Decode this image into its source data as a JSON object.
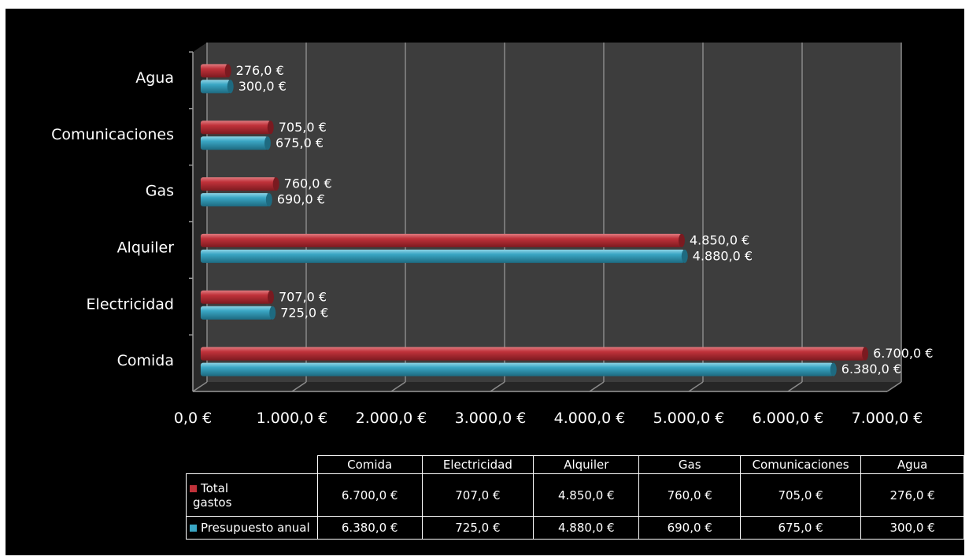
{
  "chart_data": {
    "type": "bar",
    "orientation": "horizontal",
    "categories": [
      "Comida",
      "Electricidad",
      "Alquiler",
      "Gas",
      "Comunicaciones",
      "Agua"
    ],
    "series": [
      {
        "name": "Total gastos",
        "name_line1": "Total",
        "name_line2": "gastos",
        "color": "#c0323a",
        "values": [
          6700,
          707,
          4850,
          760,
          705,
          276
        ],
        "labels": [
          "6.700,0 €",
          "707,0 €",
          "4.850,0 €",
          "760,0 €",
          "705,0 €",
          "276,0 €"
        ]
      },
      {
        "name": "Presupuesto anual",
        "color": "#3aa6c4",
        "values": [
          6380,
          725,
          4880,
          690,
          675,
          300
        ],
        "labels": [
          "6.380,0 €",
          "725,0 €",
          "4.880,0 €",
          "690,0 €",
          "675,0 €",
          "300,0 €"
        ]
      }
    ],
    "xlim": [
      0,
      7000
    ],
    "xticks": [
      0,
      1000,
      2000,
      3000,
      4000,
      5000,
      6000,
      7000
    ],
    "xtick_labels": [
      "0,0 €",
      "1.000,0 €",
      "2.000,0 €",
      "3.000,0 €",
      "4.000,0 €",
      "5.000,0 €",
      "6.000,0 €",
      "7.000,0 €"
    ],
    "grid": true,
    "legend": "data-table"
  }
}
